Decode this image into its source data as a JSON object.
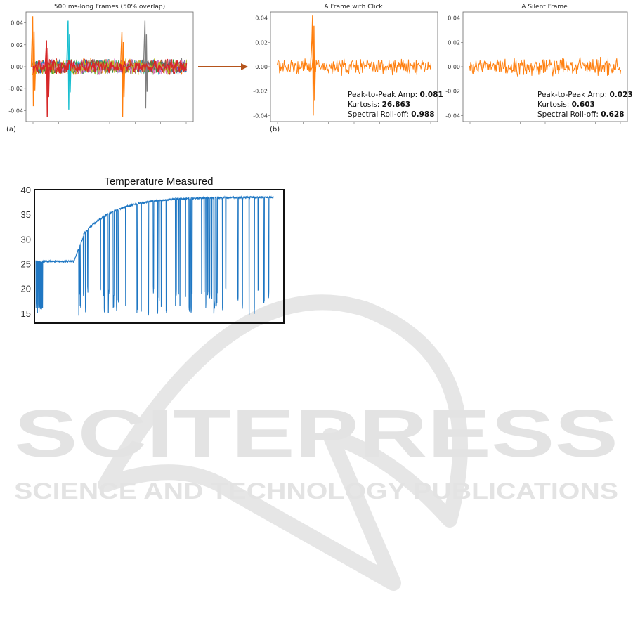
{
  "watermark": {
    "main": "SCITEPRESS",
    "sub": "SCIENCE AND TECHNOLOGY PUBLICATIONS"
  },
  "colors": {
    "orange": "#ff7f0e",
    "cyan": "#17becf",
    "gray": "#7f7f7f",
    "red": "#d62728",
    "blue": "#1f77b4",
    "green": "#2ca02c",
    "purple": "#9467bd",
    "brown": "#8c564b",
    "pink": "#e377c2",
    "olive": "#bcbd22",
    "arrow": "#b5541b",
    "temp_line": "#1f77c3"
  },
  "figure_top": {
    "label_a": "(a)",
    "label_b": "(b)"
  },
  "chart_data": [
    {
      "type": "line",
      "title": "500 ms-long Frames (50% overlap)",
      "ylim": [
        -0.05,
        0.05
      ],
      "yticks": [
        "0.04",
        "0.02",
        "0.00",
        "-0.02",
        "-0.04"
      ],
      "series_note_colors": [
        "orange",
        "cyan",
        "gray",
        "red",
        "blue",
        "green",
        "purple",
        "brown",
        "pink",
        "olive"
      ],
      "noise_amplitude": 0.008,
      "spikes": [
        {
          "color": "orange",
          "x_frac": 0.0,
          "max": 0.046,
          "min": -0.036
        },
        {
          "color": "red",
          "x_frac": 0.09,
          "max": 0.024,
          "min": -0.046
        },
        {
          "color": "cyan",
          "x_frac": 0.23,
          "max": 0.042,
          "min": -0.039
        },
        {
          "color": "orange",
          "x_frac": 0.58,
          "max": 0.032,
          "min": -0.046
        },
        {
          "color": "gray",
          "x_frac": 0.73,
          "max": 0.042,
          "min": -0.038
        }
      ]
    },
    {
      "type": "line",
      "title": "A Frame with Click",
      "ylim": [
        -0.045,
        0.045
      ],
      "yticks": [
        "0.04",
        "0.02",
        "0.00",
        "-0.02",
        "-0.04"
      ],
      "color": "orange",
      "spike": {
        "x_frac": 0.23,
        "max": 0.042,
        "min": -0.04
      },
      "noise_amplitude": 0.008,
      "stats": [
        {
          "label": "Peak-to-Peak Amp: ",
          "value": "0.081"
        },
        {
          "label": "Kurtosis: ",
          "value": "26.863"
        },
        {
          "label": "Spectral Roll-off: ",
          "value": "0.988"
        }
      ]
    },
    {
      "type": "line",
      "title": "A Silent Frame",
      "ylim": [
        -0.045,
        0.045
      ],
      "yticks": [
        "0.04",
        "0.02",
        "0.00",
        "-0.02",
        "-0.04"
      ],
      "color": "orange",
      "noise_amplitude": 0.009,
      "stats": [
        {
          "label": "Peak-to-Peak Amp: ",
          "value": "0.023"
        },
        {
          "label": "Kurtosis: ",
          "value": "0.603"
        },
        {
          "label": "Spectral Roll-off: ",
          "value": "0.628"
        }
      ]
    },
    {
      "type": "line",
      "title": "Temperature Measured",
      "ylim": [
        13,
        40
      ],
      "yticks": [
        40,
        35,
        30,
        25,
        20,
        15
      ],
      "color": "temp_line",
      "baseline_before": 25.5,
      "plateau": 38.5,
      "dip_low": 15,
      "dip_high": 20
    }
  ]
}
